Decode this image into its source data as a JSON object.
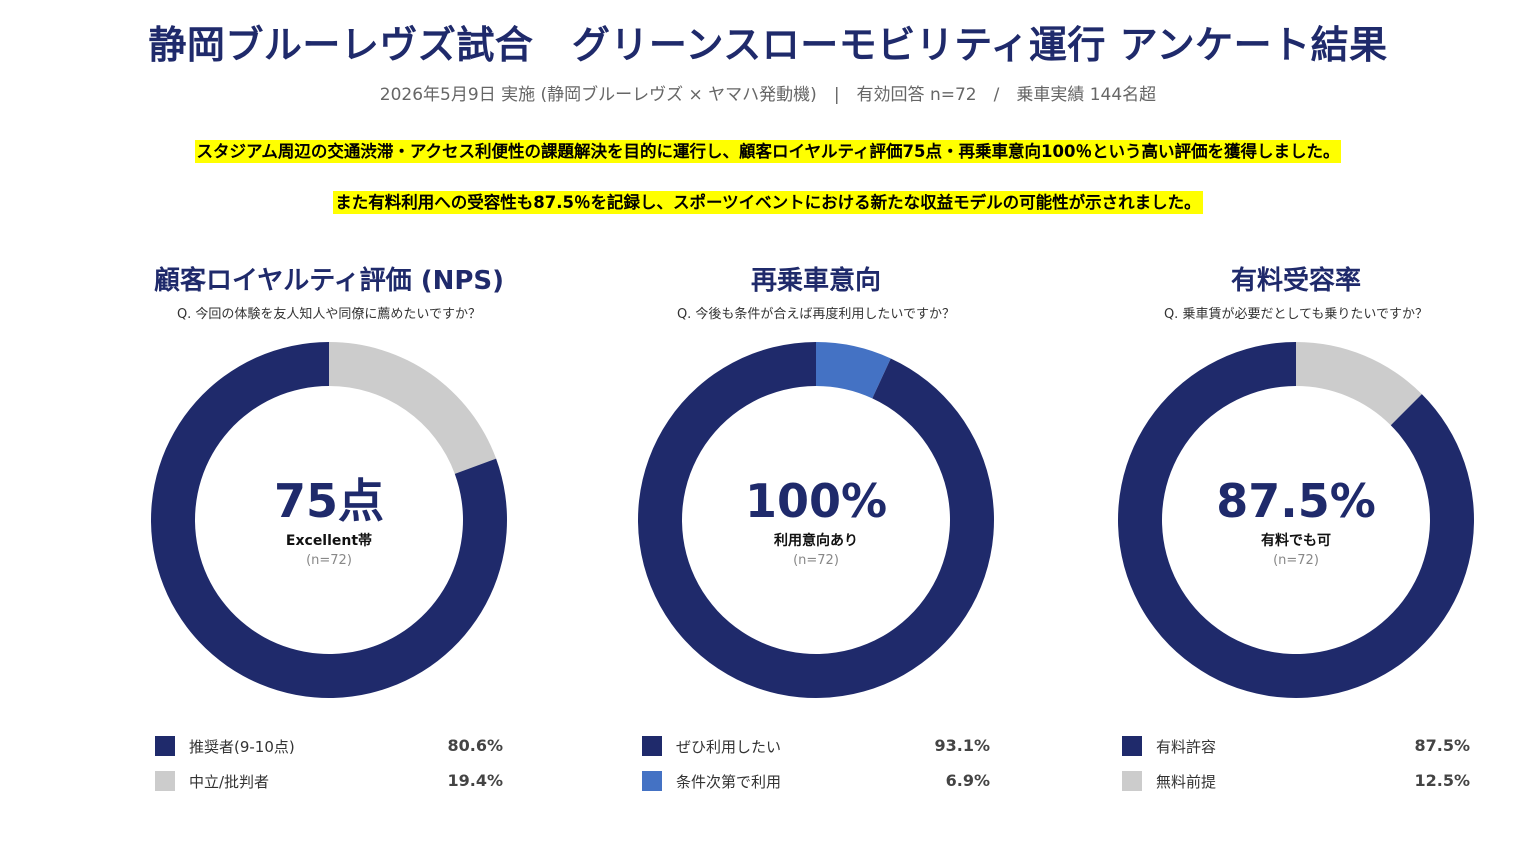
{
  "title": "静岡ブルーレヴズ試合　グリーンスローモビリティ運行 アンケート結果",
  "subtitle": "2026年5月9日 実施 (静岡ブルーレヴズ × ヤマハ発動機)　|　有効回答 n=72　/　乗車実績 144名超",
  "highlight1": "スタジアム周辺の交通渋滞・アクセス利便性の課題解決を目的に運行し、顧客ロイヤルティ評価75点・再乗車意向100％という高い評価を獲得しました。",
  "highlight2": "また有料利用への受容性も87.5％を記録し、スポーツイベントにおける新たな収益モデルの可能性が示されました。",
  "colors": {
    "navy": "#1f2a6b",
    "gray": "#cccccc",
    "blue": "#4472c4"
  },
  "panels": [
    {
      "title": "顧客ロイヤルティ評価 (NPS)",
      "question": "Q. 今回の体験を友人知人や同僚に薦めたいですか？",
      "center_value": "75点",
      "center_label": "Excellent帯",
      "center_n": "(n=72)"
    },
    {
      "title": "再乗車意向",
      "question": "Q. 今後も条件が合えば再度利用したいですか？",
      "center_value": "100%",
      "center_label": "利用意向あり",
      "center_n": "(n=72)"
    },
    {
      "title": "有料受容率",
      "question": "Q. 乗車賃が必要だとしても乗りたいですか？",
      "center_value": "87.5%",
      "center_label": "有料でも可",
      "center_n": "(n=72)"
    }
  ],
  "chart_data": [
    {
      "type": "pie",
      "title": "顧客ロイヤルティ評価 (NPS)",
      "slices": [
        {
          "label": "推奨者(9-10点)",
          "value": 80.6,
          "value_label": "80.6%",
          "color": "#1f2a6b"
        },
        {
          "label": "中立/批判者",
          "value": 19.4,
          "value_label": "19.4%",
          "color": "#cccccc"
        }
      ]
    },
    {
      "type": "pie",
      "title": "再乗車意向",
      "slices": [
        {
          "label": "ぜひ利用したい",
          "value": 93.1,
          "value_label": "93.1%",
          "color": "#1f2a6b"
        },
        {
          "label": "条件次第で利用",
          "value": 6.9,
          "value_label": "6.9%",
          "color": "#4472c4"
        }
      ]
    },
    {
      "type": "pie",
      "title": "有料受容率",
      "slices": [
        {
          "label": "有料許容",
          "value": 87.5,
          "value_label": "87.5%",
          "color": "#1f2a6b"
        },
        {
          "label": "無料前提",
          "value": 12.5,
          "value_label": "12.5%",
          "color": "#cccccc"
        }
      ]
    }
  ]
}
